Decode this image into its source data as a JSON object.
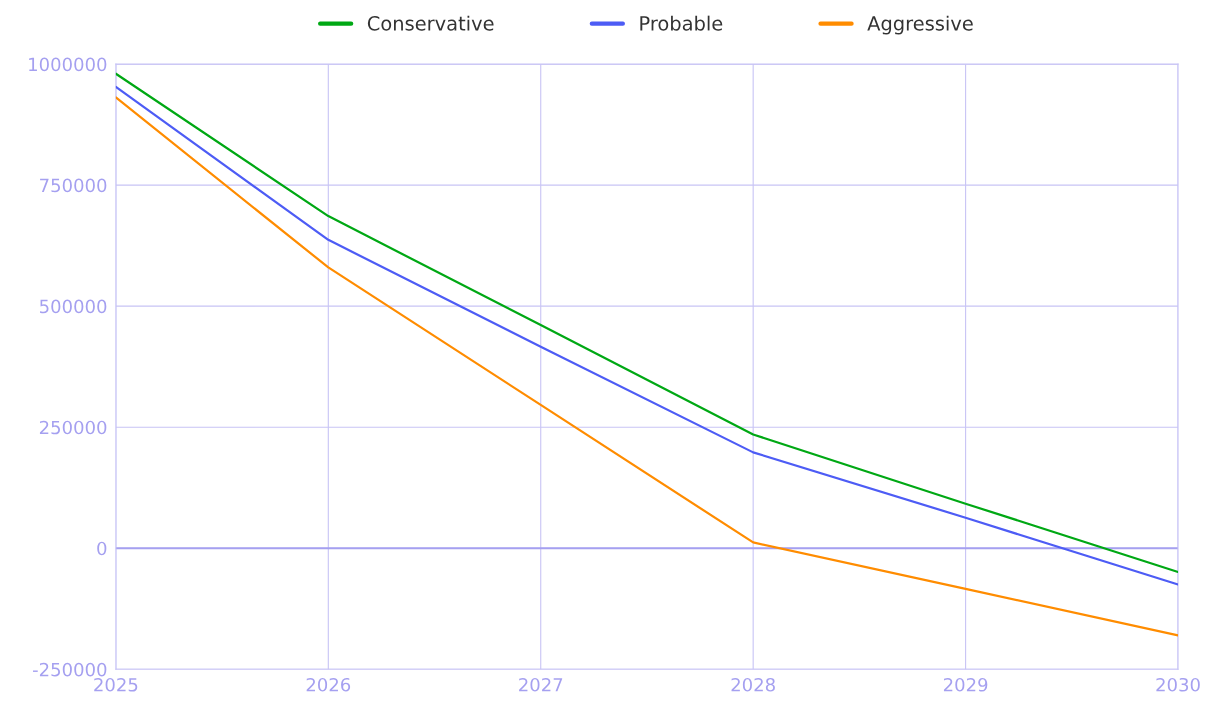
{
  "chart_data": {
    "type": "line",
    "x": [
      2025,
      2026,
      2027,
      2028,
      2029,
      2030
    ],
    "series": [
      {
        "name": "Conservative",
        "color": "#00a814",
        "values": [
          980000,
          686000,
          461000,
          235000,
          92000,
          -49000
        ]
      },
      {
        "name": "Probable",
        "color": "#4d5cf5",
        "values": [
          953000,
          637000,
          416000,
          198000,
          63000,
          -75000
        ]
      },
      {
        "name": "Aggressive",
        "color": "#ff8c00",
        "values": [
          931000,
          580000,
          296000,
          12000,
          -84000,
          -180000
        ]
      }
    ],
    "xlim": [
      2025,
      2030
    ],
    "xticks": [
      2025,
      2026,
      2027,
      2028,
      2029,
      2030
    ],
    "ylim": [
      -250000,
      1000000
    ],
    "yticks": [
      -250000,
      0,
      250000,
      500000,
      750000,
      1000000
    ],
    "ref_lines": [
      {
        "axis": "y",
        "value": 0,
        "color": "#a5a0f0"
      }
    ],
    "grid": true,
    "legend": "top",
    "marker": "none",
    "line_style": "solid"
  }
}
